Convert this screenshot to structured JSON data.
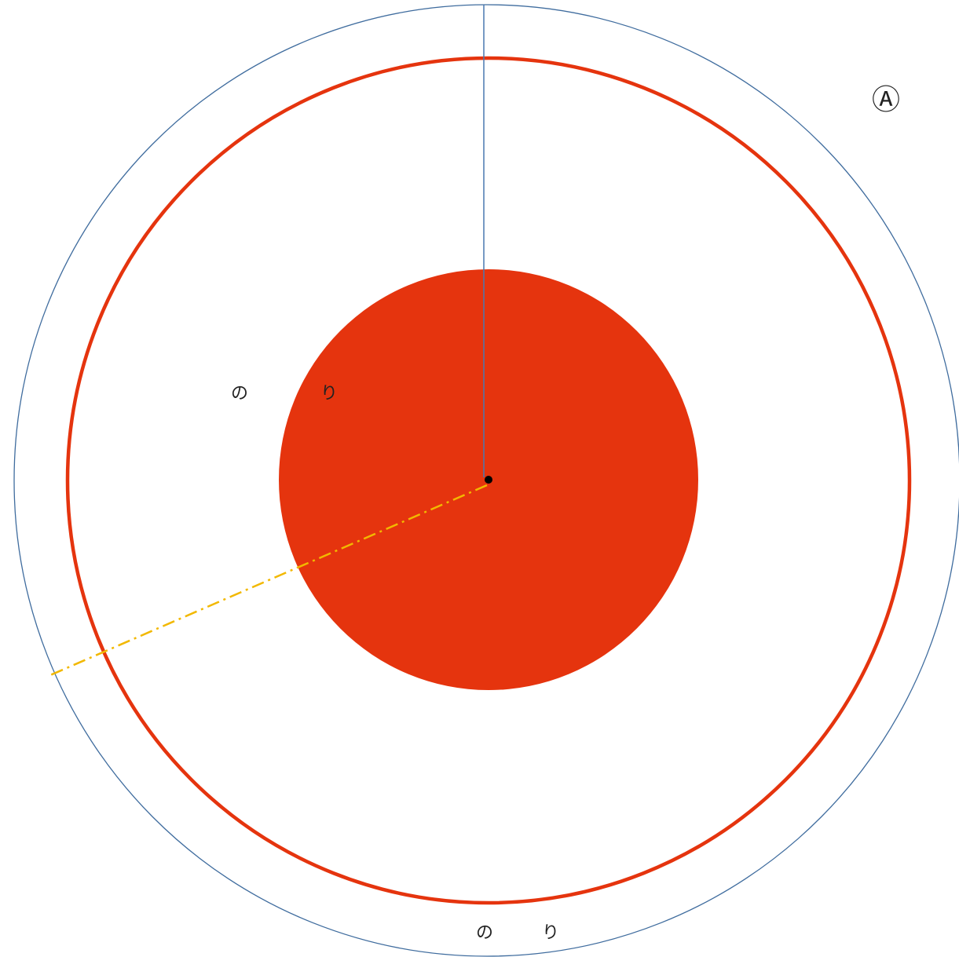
{
  "labels": {
    "glue_left_1": "の",
    "glue_left_2": "り",
    "glue_bottom_1": "の",
    "glue_bottom_2": "り",
    "marker": "Ⓐ"
  },
  "colors": {
    "outer_circle": "#3f6c9e",
    "red": "#e5340e",
    "radius_line": "#4a78b0",
    "dash_line": "#f2b800",
    "center_dot": "#000000",
    "background": "#ffffff"
  }
}
